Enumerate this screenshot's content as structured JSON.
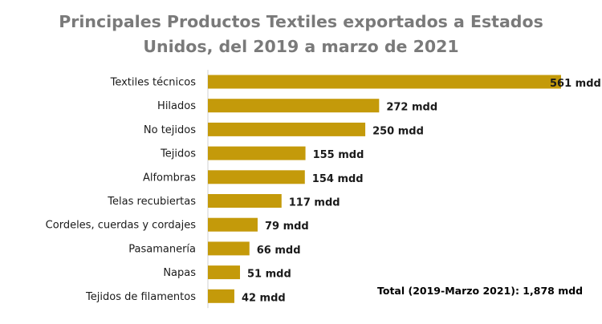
{
  "chart_data": {
    "type": "bar",
    "orientation": "horizontal",
    "title_line1": "Principales Productos Textiles exportados a Estados",
    "title_line2": "Unidos, del 2019 a marzo de 2021",
    "categories": [
      "Textiles técnicos",
      "Hilados",
      "No tejidos",
      "Tejidos",
      "Alfombras",
      "Telas recubiertas",
      "Cordeles, cuerdas y cordajes",
      "Pasamanería",
      "Napas",
      "Tejidos de filamentos"
    ],
    "values": [
      561,
      272,
      250,
      155,
      154,
      117,
      79,
      66,
      51,
      42
    ],
    "value_labels": [
      "561 mdd",
      "272 mdd",
      "250 mdd",
      "155 mdd",
      "154 mdd",
      "117 mdd",
      "79 mdd",
      "66 mdd",
      "51 mdd",
      "42 mdd"
    ],
    "unit": "mdd",
    "annotation": "Total (2019-Marzo 2021): 1,878 mdd",
    "bar_color": "#C49A0A",
    "axis": false,
    "grid": false,
    "legend": false
  }
}
